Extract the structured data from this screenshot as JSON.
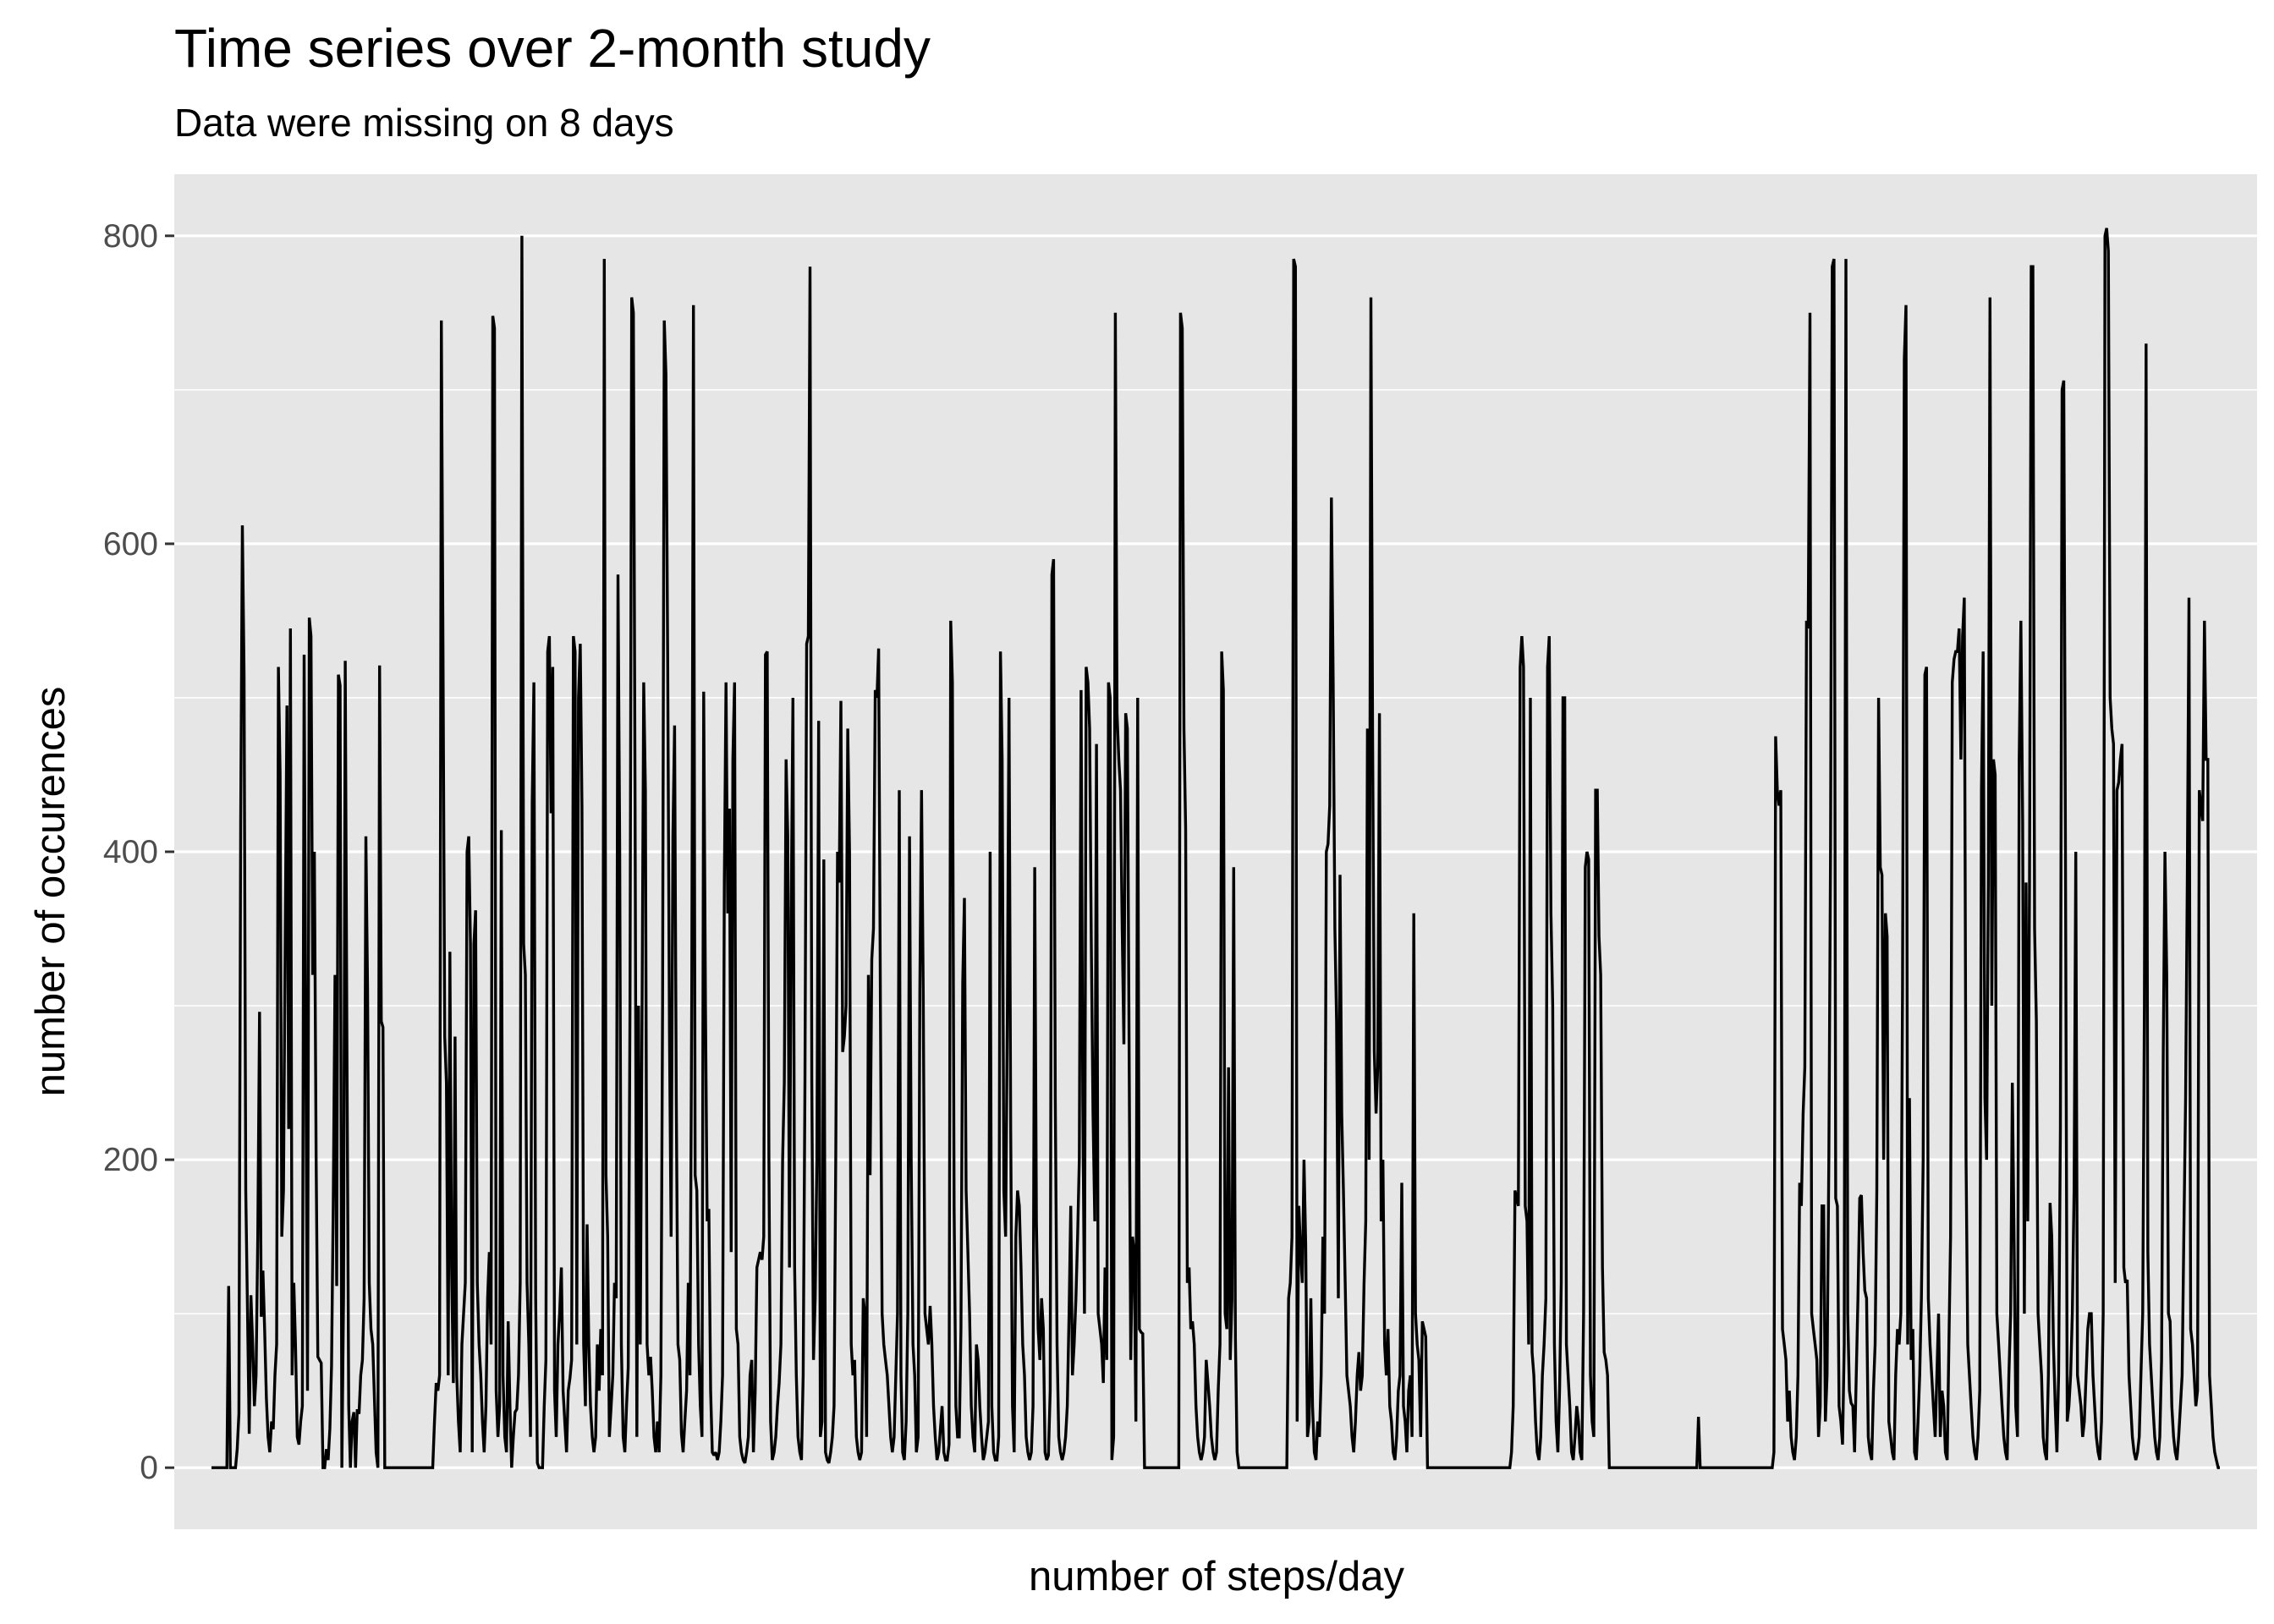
{
  "chart_data": {
    "type": "line",
    "title": "Time series over 2-month study",
    "subtitle": "Data were missing on 8 days",
    "xlabel": "number of steps/day",
    "ylabel": "number of occurences",
    "ylim": [
      -40,
      840
    ],
    "yticks": [
      0,
      200,
      400,
      600,
      800
    ],
    "x_ticks_shown": false,
    "grid": true,
    "legend": "none",
    "colors": {
      "panel": "#e6e6e6",
      "grid": "#ffffff",
      "line": "#000000",
      "tick_text": "#4d4d4d"
    },
    "series": [
      {
        "y": [
          0,
          0,
          0,
          0,
          0,
          0,
          0,
          0,
          0,
          0,
          118,
          0,
          0,
          0,
          0,
          12,
          35,
          420,
          612,
          515,
          180,
          100,
          22,
          112,
          80,
          40,
          60,
          150,
          296,
          98,
          128,
          90,
          45,
          20,
          10,
          30,
          25,
          60,
          80,
          520,
          450,
          150,
          180,
          350,
          495,
          220,
          545,
          60,
          120,
          80,
          20,
          15,
          30,
          40,
          528,
          270,
          50,
          552,
          540,
          320,
          400,
          200,
          72,
          70,
          68,
          0,
          0,
          12,
          5,
          25,
          66,
          170,
          320,
          118,
          515,
          508,
          0,
          112,
          524,
          260,
          40,
          0,
          30,
          36,
          0,
          38,
          35,
          60,
          70,
          110,
          410,
          310,
          120,
          90,
          80,
          45,
          10,
          0,
          521,
          290,
          286,
          0,
          0,
          0,
          0,
          0,
          0,
          0,
          0,
          0,
          0,
          0,
          0,
          0,
          0,
          0,
          0,
          0,
          0,
          0,
          0,
          0,
          0,
          0,
          0,
          0,
          0,
          0,
          0,
          0,
          30,
          55,
          50,
          60,
          745,
          525,
          280,
          250,
          60,
          335,
          130,
          55,
          280,
          60,
          30,
          10,
          80,
          100,
          120,
          400,
          410,
          340,
          10,
          340,
          362,
          120,
          80,
          60,
          30,
          10,
          40,
          110,
          140,
          80,
          748,
          740,
          50,
          20,
          40,
          414,
          60,
          20,
          10,
          95,
          40,
          0,
          20,
          36,
          38,
          60,
          120,
          800,
          340,
          320,
          120,
          80,
          20,
          432,
          510,
          110,
          3,
          0,
          0,
          0,
          40,
          70,
          530,
          540,
          425,
          520,
          50,
          20,
          80,
          100,
          130,
          50,
          30,
          10,
          50,
          58,
          70,
          540,
          530,
          80,
          500,
          535,
          430,
          80,
          40,
          158,
          80,
          40,
          20,
          10,
          20,
          80,
          50,
          90,
          60,
          785,
          190,
          150,
          20,
          40,
          60,
          120,
          110,
          580,
          405,
          80,
          20,
          10,
          40,
          65,
          300,
          760,
          750,
          430,
          20,
          300,
          80,
          290,
          510,
          440,
          80,
          60,
          72,
          50,
          20,
          10,
          30,
          10,
          60,
          300,
          745,
          710,
          520,
          285,
          150,
          410,
          482,
          240,
          80,
          70,
          22,
          10,
          30,
          50,
          120,
          60,
          310,
          755,
          190,
          180,
          80,
          40,
          20,
          504,
          300,
          160,
          168,
          50,
          10,
          8,
          10,
          5,
          10,
          30,
          60,
          380,
          510,
          360,
          428,
          140,
          460,
          510,
          90,
          80,
          20,
          10,
          5,
          3,
          10,
          20,
          60,
          70,
          10,
          50,
          130,
          135,
          140,
          135,
          150,
          528,
          530,
          200,
          30,
          5,
          10,
          20,
          40,
          55,
          80,
          200,
          250,
          460,
          410,
          130,
          360,
          500,
          130,
          60,
          20,
          10,
          5,
          60,
          250,
          535,
          540,
          780,
          250,
          70,
          110,
          200,
          485,
          20,
          30,
          395,
          10,
          5,
          3,
          10,
          20,
          40,
          200,
          400,
          380,
          498,
          270,
          280,
          300,
          480,
          400,
          80,
          60,
          70,
          20,
          10,
          5,
          10,
          110,
          100,
          20,
          320,
          190,
          330,
          350,
          505,
          500,
          532,
          300,
          100,
          80,
          70,
          60,
          40,
          20,
          10,
          20,
          60,
          100,
          440,
          60,
          10,
          5,
          30,
          100,
          410,
          200,
          80,
          60,
          10,
          20,
          310,
          440,
          310,
          100,
          90,
          80,
          105,
          80,
          40,
          20,
          5,
          10,
          25,
          40,
          10,
          5,
          5,
          15,
          550,
          510,
          170,
          40,
          20,
          20,
          90,
          315,
          370,
          180,
          140,
          100,
          40,
          20,
          10,
          80,
          70,
          40,
          20,
          5,
          10,
          20,
          30,
          400,
          40,
          10,
          5,
          5,
          20,
          530,
          460,
          180,
          150,
          290,
          500,
          220,
          40,
          10,
          150,
          180,
          170,
          130,
          80,
          60,
          20,
          10,
          5,
          10,
          40,
          390,
          160,
          90,
          70,
          110,
          90,
          10,
          5,
          8,
          50,
          580,
          590,
          240,
          80,
          20,
          10,
          5,
          10,
          20,
          40,
          100,
          170,
          60,
          80,
          110,
          150,
          200,
          505,
          240,
          100,
          520,
          510,
          480,
          340,
          230,
          160,
          470,
          100,
          90,
          80,
          55,
          130,
          70,
          510,
          500,
          5,
          20,
          750,
          490,
          460,
          440,
          350,
          275,
          490,
          480,
          280,
          70,
          150,
          140,
          30,
          500,
          90,
          88,
          87,
          0,
          0,
          0,
          0,
          0,
          0,
          0,
          0,
          0,
          0,
          0,
          0,
          0,
          0,
          0,
          0,
          0,
          0,
          0,
          0,
          0,
          750,
          740,
          480,
          415,
          120,
          130,
          90,
          95,
          80,
          40,
          20,
          10,
          5,
          10,
          20,
          70,
          55,
          40,
          20,
          10,
          5,
          10,
          50,
          80,
          530,
          505,
          100,
          90,
          260,
          70,
          110,
          390,
          85,
          10,
          0,
          0,
          0,
          0,
          0,
          0,
          0,
          0,
          0,
          0,
          0,
          0,
          0,
          0,
          0,
          0,
          0,
          0,
          0,
          0,
          0,
          0,
          0,
          0,
          0,
          0,
          0,
          0,
          0,
          110,
          120,
          150,
          785,
          780,
          30,
          170,
          140,
          120,
          200,
          145,
          20,
          30,
          110,
          40,
          10,
          5,
          30,
          20,
          60,
          150,
          100,
          400,
          405,
          430,
          630,
          510,
          350,
          290,
          110,
          385,
          230,
          180,
          120,
          60,
          50,
          40,
          20,
          10,
          30,
          60,
          75,
          50,
          60,
          120,
          160,
          480,
          200,
          760,
          475,
          270,
          230,
          260,
          490,
          160,
          200,
          80,
          60,
          90,
          40,
          30,
          10,
          5,
          20,
          50,
          60,
          185,
          40,
          30,
          10,
          50,
          60,
          20,
          360,
          100,
          80,
          70,
          20,
          95,
          90,
          85,
          0,
          0,
          0,
          0,
          0,
          0,
          0,
          0,
          0,
          0,
          0,
          0,
          0,
          0,
          0,
          0,
          0,
          0,
          0,
          0,
          0,
          0,
          0,
          0,
          0,
          0,
          0,
          0,
          0,
          0,
          0,
          0,
          0,
          0,
          0,
          0,
          0,
          0,
          0,
          0,
          0,
          0,
          0,
          0,
          0,
          0,
          0,
          0,
          0,
          10,
          40,
          180,
          175,
          170,
          520,
          540,
          520,
          170,
          160,
          80,
          500,
          75,
          60,
          30,
          10,
          5,
          20,
          60,
          80,
          110,
          520,
          540,
          360,
          300,
          80,
          30,
          10,
          50,
          120,
          500,
          500,
          80,
          60,
          40,
          10,
          5,
          20,
          40,
          30,
          10,
          5,
          100,
          390,
          400,
          395,
          60,
          30,
          20,
          440,
          440,
          345,
          320,
          130,
          75,
          70,
          60,
          0,
          0,
          0,
          0,
          0,
          0,
          0,
          0,
          0,
          0,
          0,
          0,
          0,
          0,
          0,
          0,
          0,
          0,
          0,
          0,
          0,
          0,
          0,
          0,
          0,
          0,
          0,
          0,
          0,
          0,
          0,
          0,
          0,
          0,
          0,
          0,
          0,
          0,
          0,
          0,
          0,
          0,
          0,
          0,
          0,
          0,
          0,
          0,
          0,
          0,
          0,
          0,
          33,
          0,
          0,
          0,
          0,
          0,
          0,
          0,
          0,
          0,
          0,
          0,
          0,
          0,
          0,
          0,
          0,
          0,
          0,
          0,
          0,
          0,
          0,
          0,
          0,
          0,
          0,
          0,
          0,
          0,
          0,
          0,
          0,
          0,
          0,
          0,
          0,
          0,
          0,
          0,
          0,
          0,
          0,
          0,
          10,
          475,
          440,
          430,
          440,
          90,
          80,
          70,
          30,
          50,
          20,
          10,
          5,
          20,
          60,
          185,
          170,
          230,
          260,
          550,
          545,
          750,
          100,
          90,
          80,
          70,
          20,
          40,
          170,
          170,
          30,
          60,
          200,
          400,
          780,
          785,
          175,
          170,
          40,
          30,
          15,
          80,
          785,
          100,
          50,
          42,
          40,
          10,
          60,
          110,
          175,
          177,
          140,
          115,
          110,
          20,
          10,
          5,
          50,
          80,
          180,
          500,
          390,
          385,
          200,
          360,
          345,
          30,
          20,
          10,
          5,
          60,
          90,
          80,
          100,
          310,
          720,
          755,
          80,
          240,
          70,
          90,
          10,
          5,
          30,
          60,
          110,
          200,
          515,
          520,
          110,
          80,
          60,
          40,
          20,
          60,
          100,
          20,
          50,
          40,
          10,
          5,
          80,
          150,
          510,
          525,
          530,
          530,
          545,
          460,
          540,
          565,
          200,
          80,
          60,
          40,
          20,
          10,
          5,
          20,
          50,
          440,
          530,
          240,
          200,
          380,
          760,
          300,
          460,
          450,
          100,
          80,
          60,
          40,
          20,
          10,
          5,
          60,
          100,
          250,
          150,
          40,
          20,
          460,
          550,
          420,
          100,
          380,
          160,
          380,
          780,
          780,
          350,
          290,
          100,
          80,
          60,
          20,
          10,
          5,
          60,
          172,
          150,
          80,
          40,
          10,
          60,
          220,
          700,
          706,
          400,
          30,
          40,
          60,
          100,
          180,
          400,
          60,
          50,
          40,
          20,
          30,
          60,
          90,
          100,
          100,
          60,
          40,
          20,
          10,
          5,
          30,
          100,
          800,
          805,
          790,
          500,
          480,
          470,
          120,
          440,
          445,
          460,
          470,
          130,
          120,
          122,
          60,
          40,
          20,
          10,
          5,
          10,
          20,
          60,
          100,
          300,
          730,
          140,
          80,
          60,
          40,
          20,
          10,
          5,
          20,
          70,
          270,
          400,
          320,
          100,
          95,
          40,
          20,
          10,
          5,
          20,
          40,
          60,
          150,
          240,
          380,
          565,
          90,
          80,
          60,
          40,
          50,
          440,
          430,
          420,
          550,
          460,
          460,
          60,
          40,
          20,
          10,
          5,
          0,
          0
        ]
      }
    ]
  }
}
